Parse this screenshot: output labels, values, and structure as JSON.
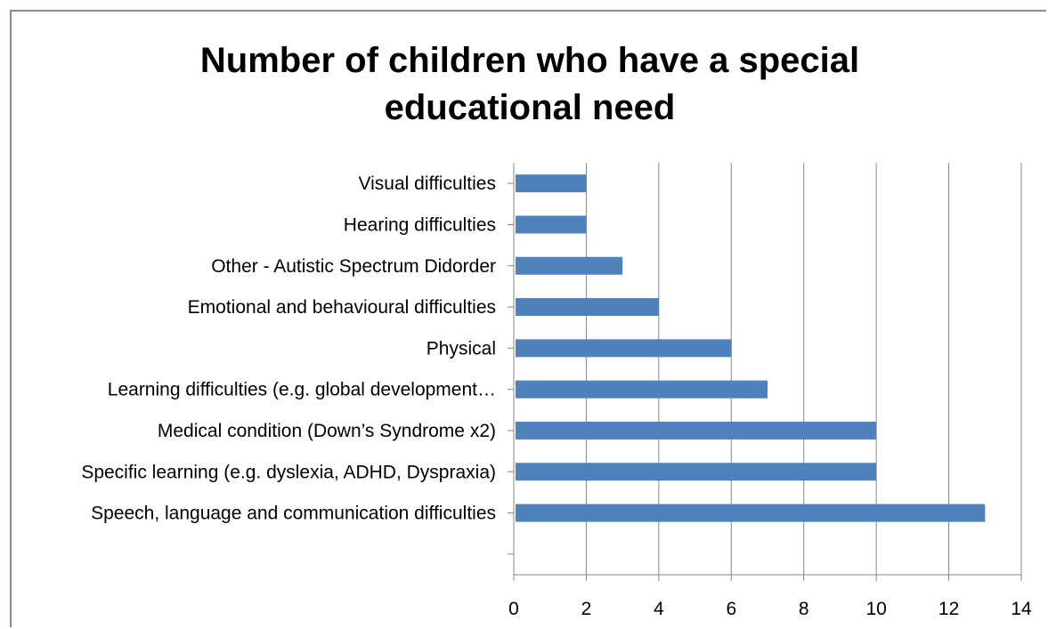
{
  "chart_data": {
    "type": "bar",
    "orientation": "horizontal",
    "title": "Number of children who have a special educational need",
    "title_lines": [
      "Number of children who have a special",
      "educational need"
    ],
    "categories": [
      "Visual difficulties",
      "Hearing difficulties",
      "Other - Autistic Spectrum Didorder",
      "Emotional and behavioural difficulties",
      "Physical",
      "Learning difficulties (e.g. global development…",
      "Medical condition (Down’s Syndrome x2)",
      "Specific learning (e.g. dyslexia, ADHD, Dyspraxia)",
      "Speech, language and communication difficulties"
    ],
    "values": [
      2,
      2,
      3,
      4,
      6,
      7,
      10,
      10,
      13
    ],
    "xlim": [
      0,
      14
    ],
    "x_ticks": [
      "0",
      "2",
      "4",
      "6",
      "8",
      "10",
      "12",
      "14"
    ],
    "xlabel": "",
    "ylabel": "",
    "grid": "vertical",
    "legend": "none",
    "bar_color": "#4f81bd",
    "grid_color": "#868686"
  }
}
